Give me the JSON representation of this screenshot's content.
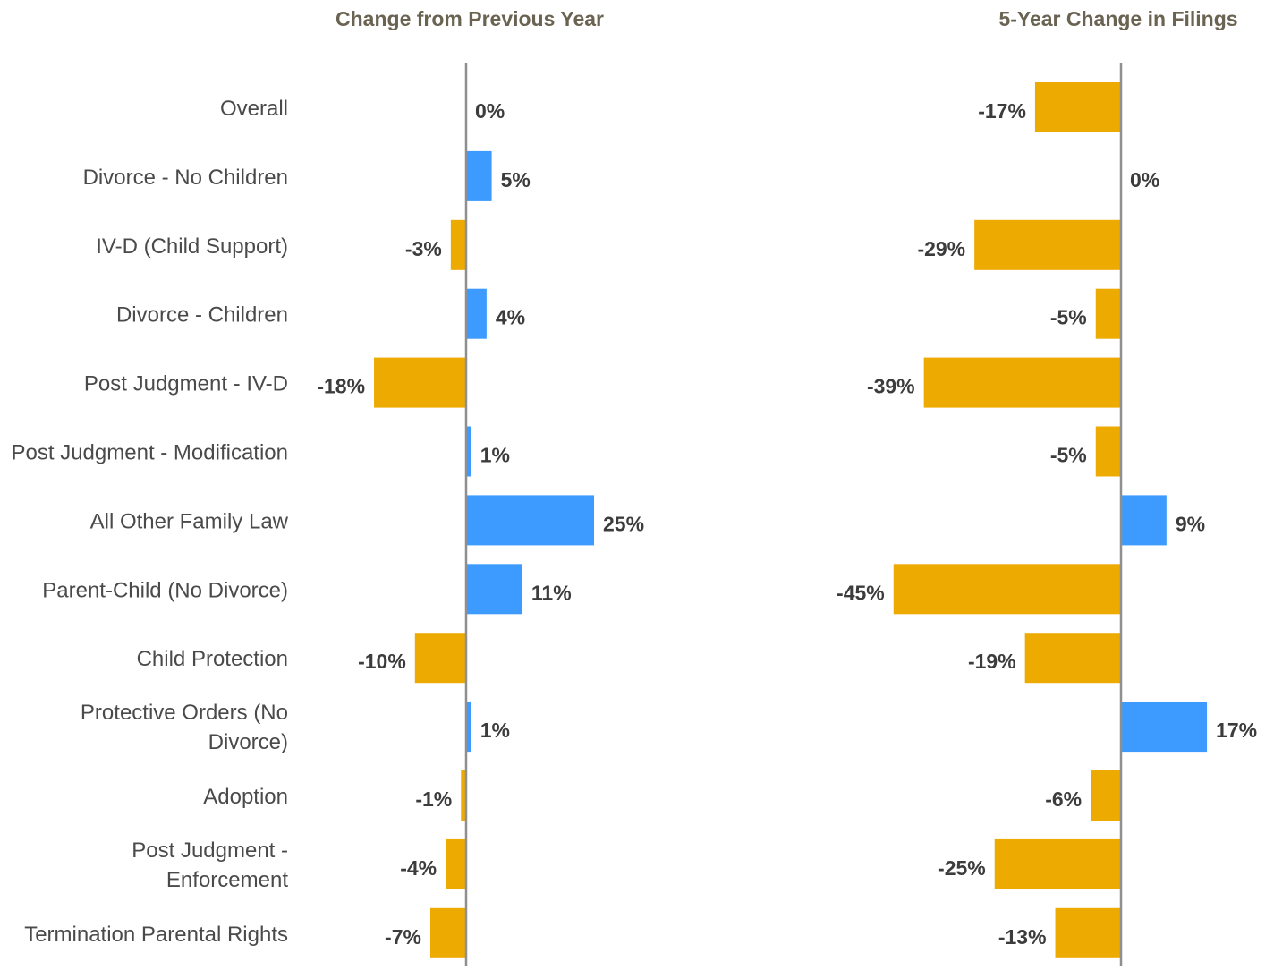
{
  "colors": {
    "positive": "#3d9bff",
    "negative": "#edaa00",
    "axis": "#8f8f8f",
    "category_text": "#4a4a4a",
    "value_text": "#3c3c3c",
    "title_text": "#6b6352"
  },
  "chart_data": [
    {
      "type": "bar",
      "orientation": "horizontal",
      "title": "Change from Previous Year",
      "unit": "%",
      "categories": [
        "Overall",
        "Divorce - No Children",
        "IV-D (Child Support)",
        "Divorce - Children",
        "Post Judgment - IV-D",
        "Post Judgment - Modification",
        "All Other Family Law",
        "Parent-Child (No Divorce)",
        "Child Protection",
        "Protective Orders (No Divorce)",
        "Adoption",
        "Post Judgment - Enforcement",
        "Termination Parental Rights"
      ],
      "values": [
        0,
        5,
        -3,
        4,
        -18,
        1,
        25,
        11,
        -10,
        1,
        -1,
        -4,
        -7
      ],
      "labels": [
        "0%",
        "5%",
        "-3%",
        "4%",
        "-18%",
        "1%",
        "25%",
        "11%",
        "-10%",
        "1%",
        "-1%",
        "-4%",
        "-7%"
      ]
    },
    {
      "type": "bar",
      "orientation": "horizontal",
      "title": "5-Year Change in Filings",
      "unit": "%",
      "categories": [
        "Overall",
        "Divorce - No Children",
        "IV-D (Child Support)",
        "Divorce - Children",
        "Post Judgment - IV-D",
        "Post Judgment - Modification",
        "All Other Family Law",
        "Parent-Child (No Divorce)",
        "Child Protection",
        "Protective Orders (No Divorce)",
        "Adoption",
        "Post Judgment - Enforcement",
        "Termination Parental Rights"
      ],
      "values": [
        -17,
        0,
        -29,
        -5,
        -39,
        -5,
        9,
        -45,
        -19,
        17,
        -6,
        -25,
        -13
      ],
      "labels": [
        "-17%",
        "0%",
        "-29%",
        "-5%",
        "-39%",
        "-5%",
        "9%",
        "-45%",
        "-19%",
        "17%",
        "-6%",
        "-25%",
        "-13%"
      ]
    }
  ]
}
